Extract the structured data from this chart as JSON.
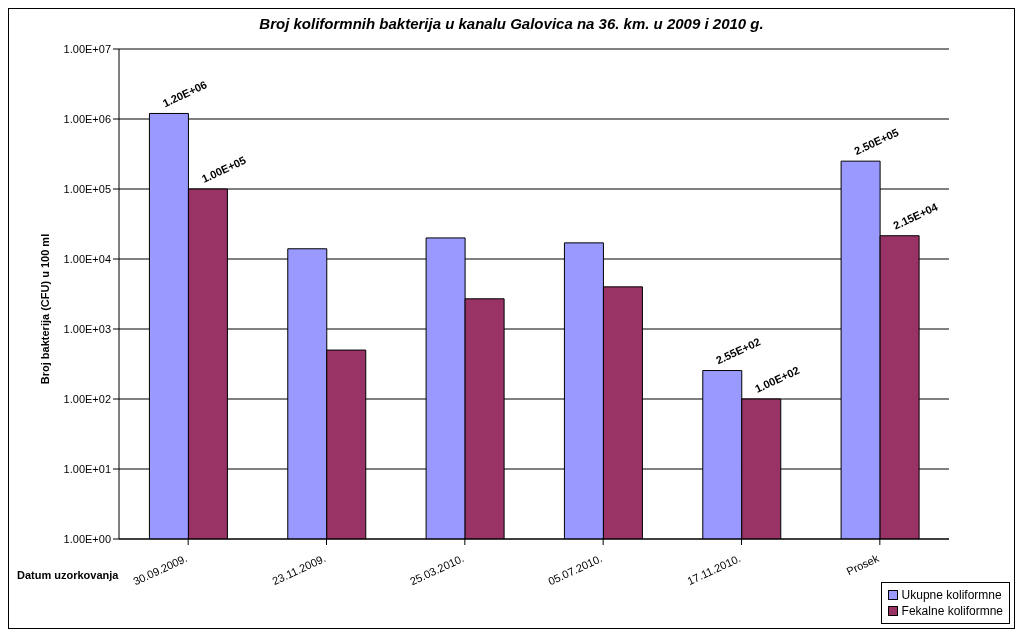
{
  "chart_data": {
    "type": "bar",
    "title": "Broj koliformnih bakterija u kanalu Galovica na 36. km. u 2009 i 2010 g.",
    "xlabel": "Datum uzorkovanja",
    "ylabel": "Broj bakterija (CFU) u 100 ml",
    "categories": [
      "30.09.2009.",
      "23.11.2009.",
      "25.03.2010.",
      "05.07.2010.",
      "17.11.2010.",
      "Prosek"
    ],
    "series": [
      {
        "name": "Ukupne koliformne",
        "color": "#9999ff",
        "values": [
          1200000,
          14000,
          20000,
          17000,
          255,
          250000
        ],
        "value_labels": [
          "1.20E+06",
          null,
          null,
          null,
          "2.55E+02",
          "2.50E+05"
        ]
      },
      {
        "name": "Fekalne koliformne",
        "color": "#993366",
        "values": [
          100000,
          500,
          2700,
          4000,
          100,
          21500
        ],
        "value_labels": [
          "1.00E+05",
          null,
          null,
          null,
          "1.00E+02",
          "2.15E+04"
        ]
      }
    ],
    "log": "y",
    "ylim": [
      1,
      10000000
    ],
    "yticks": [
      {
        "value": 1,
        "label": "1.00E+00"
      },
      {
        "value": 10,
        "label": "1.00E+01"
      },
      {
        "value": 100,
        "label": "1.00E+02"
      },
      {
        "value": 1000,
        "label": "1.00E+03"
      },
      {
        "value": 10000,
        "label": "1.00E+04"
      },
      {
        "value": 100000,
        "label": "1.00E+05"
      },
      {
        "value": 1000000,
        "label": "1.00E+06"
      },
      {
        "value": 10000000,
        "label": "1.00E+07"
      }
    ],
    "grid": "y",
    "legend": "bottom right"
  }
}
